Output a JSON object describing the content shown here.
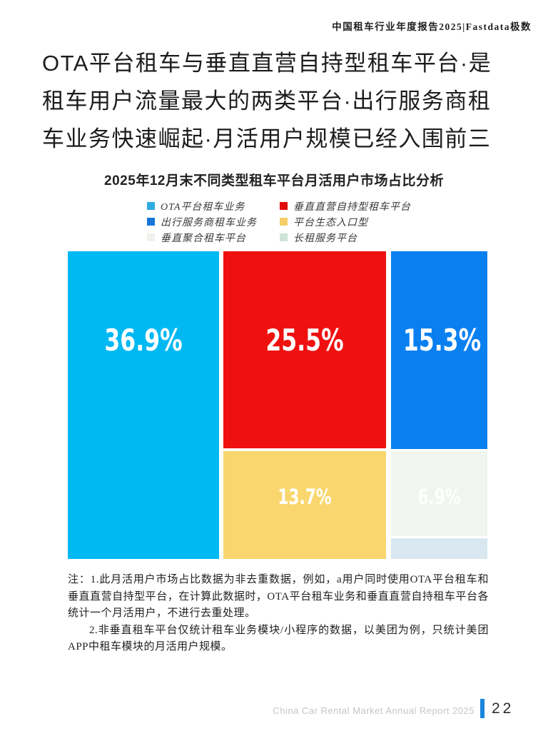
{
  "header": {
    "report_title": "中国租车行业年度报告2025|Fastdata极数"
  },
  "heading": {
    "text": "OTA平台租车与垂直直营自持型租车平台·是租车用户流量最大的两类平台·出行服务商租车业务快速崛起·月活用户规模已经入围前三"
  },
  "chart": {
    "title": "2025年12月末不同类型租车平台月活用户市场占比分析",
    "legend": [
      {
        "label": "OTA平台租车业务",
        "color": "#2FABE1"
      },
      {
        "label": "垂直直营自持型租车平台",
        "color": "#E20C0C"
      },
      {
        "label": "出行服务商租车业务",
        "color": "#1576D8"
      },
      {
        "label": "平台生态入口型",
        "color": "#F6CF67"
      },
      {
        "label": "垂直聚合租车平台",
        "color": "#EFF1EC"
      },
      {
        "label": "长租服务平台",
        "color": "#CEE4DA"
      }
    ]
  },
  "chart_data": {
    "type": "treemap",
    "title": "2025年12月末不同类型租车平台月活用户市场占比分析",
    "unit": "%",
    "legend_position": "top",
    "series": [
      {
        "name": "OTA平台租车业务",
        "value": 36.9,
        "label": "36.9%",
        "color": "#00B9F2"
      },
      {
        "name": "垂直直营自持型租车平台",
        "value": 25.5,
        "label": "25.5%",
        "color": "#EF1010"
      },
      {
        "name": "出行服务商租车业务",
        "value": 15.3,
        "label": "15.3%",
        "color": "#0A80F0"
      },
      {
        "name": "平台生态入口型",
        "value": 13.7,
        "label": "13.7%",
        "color": "#F9D76E"
      },
      {
        "name": "垂直聚合租车平台",
        "value": 6.9,
        "label": "6.9%",
        "color": "#F0F5EF"
      },
      {
        "name": "长租服务平台",
        "value": null,
        "label": "",
        "color": "#D8E7F0"
      }
    ]
  },
  "notes": {
    "para1": "注：1.此月活用户市场占比数据为非去重数据，例如，a用户同时使用OTA平台租车和垂直直营自持型平台，在计算此数据时，OTA平台租车业务和垂直直营自持租车平台各统计一个月活用户，不进行去重处理。",
    "para2": "2.非垂直租车平台仅统计租车业务模块/小程序的数据，以美团为例，只统计美团APP中租车模块的月活用户规模。"
  },
  "footer": {
    "report_name": "China Car Rental Market Annual Report 2025",
    "page_number": "22",
    "bar_color": "#1B84DC"
  }
}
